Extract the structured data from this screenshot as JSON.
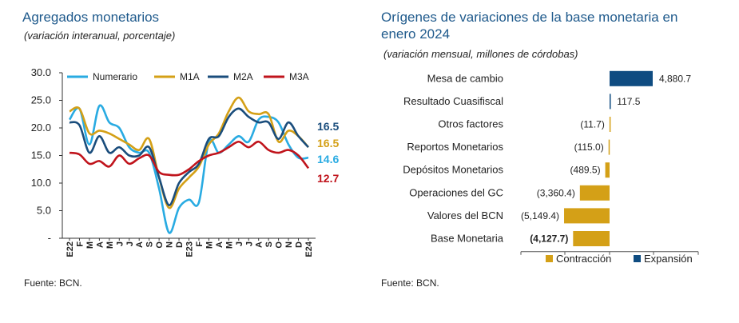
{
  "left_panel": {
    "title": "Agregados monetarios",
    "subtitle": "(variación interanual, porcentaje)",
    "source": "Fuente: BCN."
  },
  "right_panel": {
    "title_line1": "Orígenes de variaciones de la base monetaria en",
    "title_line2": "enero 2024",
    "subtitle": "(variación mensual, millones de córdobas)",
    "source": "Fuente: BCN."
  },
  "chart_data": [
    {
      "type": "line",
      "x": [
        "E22",
        "F",
        "M",
        "A",
        "M",
        "J",
        "J",
        "A",
        "S",
        "O",
        "N",
        "D",
        "E23",
        "F",
        "M",
        "A",
        "M",
        "J",
        "J",
        "A",
        "S",
        "O",
        "N",
        "D",
        "E24"
      ],
      "y_tick_labels": [
        "-",
        "5.0",
        "10.0",
        "15.0",
        "20.0",
        "25.0",
        "30.0"
      ],
      "ylim": [
        0,
        30
      ],
      "grid": false,
      "legend_position": "top",
      "series": [
        {
          "name": "Numerario",
          "color": "#29abe2",
          "values": [
            21.5,
            23.5,
            17.0,
            24.0,
            21.0,
            20.0,
            16.5,
            15.5,
            15.5,
            9.0,
            1.0,
            5.5,
            7.0,
            6.5,
            17.5,
            15.5,
            17.0,
            18.5,
            17.5,
            21.5,
            22.0,
            21.0,
            17.0,
            14.6,
            14.6
          ]
        },
        {
          "name": "M1A",
          "color": "#d4a017",
          "values": [
            23.0,
            23.5,
            19.0,
            19.5,
            19.0,
            18.0,
            17.0,
            16.0,
            18.0,
            11.0,
            5.5,
            9.0,
            11.0,
            13.0,
            17.0,
            19.0,
            23.0,
            25.5,
            23.0,
            22.5,
            22.5,
            17.5,
            19.5,
            18.5,
            16.5
          ]
        },
        {
          "name": "M2A",
          "color": "#1a4d7c",
          "values": [
            21.0,
            20.5,
            15.5,
            18.5,
            15.5,
            16.5,
            15.0,
            15.0,
            16.5,
            11.0,
            6.0,
            10.0,
            12.0,
            13.5,
            18.0,
            18.5,
            22.0,
            23.5,
            22.0,
            21.0,
            21.0,
            18.0,
            21.0,
            18.5,
            16.5
          ]
        },
        {
          "name": "M3A",
          "color": "#c0141c",
          "values": [
            15.5,
            15.2,
            13.5,
            14.0,
            13.0,
            15.0,
            13.5,
            14.5,
            15.0,
            12.0,
            11.5,
            11.5,
            12.5,
            14.0,
            15.0,
            15.5,
            16.5,
            17.5,
            16.5,
            17.5,
            16.0,
            15.5,
            16.0,
            15.0,
            12.7
          ]
        }
      ],
      "end_labels": [
        "16.5",
        "16.5",
        "14.6",
        "12.7"
      ]
    },
    {
      "type": "bar",
      "orientation": "horizontal",
      "categories": [
        "Mesa de cambio",
        "Resultado Cuasifiscal",
        "Otros factores",
        "Reportos Monetarios",
        "Depósitos Monetarios",
        "Operaciones del GC",
        "Valores del BCN",
        "Base Monetaria"
      ],
      "values": [
        4880.7,
        117.5,
        -11.7,
        -115.0,
        -489.5,
        -3360.4,
        -5149.4,
        -4127.7
      ],
      "value_labels": [
        "4,880.7",
        "117.5",
        "(11.7)",
        "(115.0)",
        "(489.5)",
        "(3,360.4)",
        "(5,149.4)",
        "(4,127.7)"
      ],
      "xlim": [
        -5500,
        5500
      ],
      "legend": [
        {
          "name": "Contracción",
          "color": "#d4a017"
        },
        {
          "name": "Expansión",
          "color": "#0f4c81"
        }
      ]
    }
  ]
}
